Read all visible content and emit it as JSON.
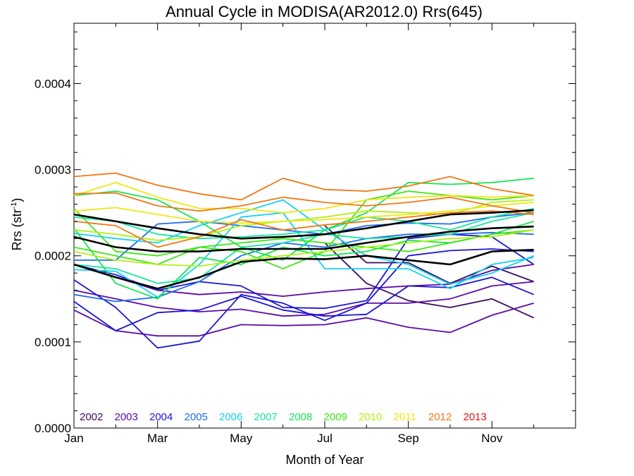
{
  "chart_data": {
    "type": "line",
    "title": "Annual Cycle in MODISA(AR2012.0) Rrs(645)",
    "xlabel": "Month of Year",
    "ylabel": "Rrs (str",
    "ylabel_sup": "-1",
    "ylabel_end": ")",
    "x_range": [
      1,
      13
    ],
    "ylim": [
      0,
      0.00047
    ],
    "x_ticks": [
      {
        "x": 1,
        "label": "Jan"
      },
      {
        "x": 3,
        "label": "Mar"
      },
      {
        "x": 5,
        "label": "May"
      },
      {
        "x": 7,
        "label": "Jul"
      },
      {
        "x": 9,
        "label": "Sep"
      },
      {
        "x": 11,
        "label": "Nov"
      }
    ],
    "y_ticks": [
      {
        "y": 0.0,
        "label": "0.0000"
      },
      {
        "y": 0.0001,
        "label": "0.0001"
      },
      {
        "y": 0.0002,
        "label": "0.0002"
      },
      {
        "y": 0.0003,
        "label": "0.0003"
      },
      {
        "y": 0.0004,
        "label": "0.0004"
      }
    ],
    "grid": false,
    "legend_position": "bottom-left",
    "series": [
      {
        "name": "2002",
        "color": "#3d0a5c",
        "x": [
          7,
          8,
          9,
          10,
          11,
          12
        ],
        "values": [
          0.000235,
          0.000192,
          0.000192,
          0.000168,
          0.000188,
          0.00017
        ]
      },
      {
        "name": "2002",
        "color": "#3d0a5c",
        "x": [
          7,
          8,
          9,
          10,
          11,
          12
        ],
        "values": [
          0.000215,
          0.000168,
          0.000148,
          0.00014,
          0.00015,
          0.000128
        ]
      },
      {
        "name": "2003",
        "color": "#5a0aa8",
        "x": [
          1,
          2,
          3,
          4,
          5,
          6,
          7,
          8,
          9,
          10,
          11,
          12
        ],
        "values": [
          0.00016,
          0.00015,
          0.00014,
          0.000135,
          0.000138,
          0.00013,
          0.000132,
          0.000145,
          0.000145,
          0.00015,
          0.000165,
          0.00017
        ]
      },
      {
        "name": "2003",
        "color": "#5a0aa8",
        "x": [
          1,
          2,
          3,
          4,
          5,
          6,
          7,
          8,
          9,
          10,
          11,
          12
        ],
        "values": [
          0.000137,
          0.000113,
          0.000107,
          0.000107,
          0.00012,
          0.000119,
          0.00012,
          0.000128,
          0.000117,
          0.000111,
          0.000131,
          0.000145
        ]
      },
      {
        "name": "2003",
        "color": "#5a0aa8",
        "x": [
          1,
          2,
          3,
          4,
          5,
          6,
          7,
          8,
          9,
          10,
          11,
          12
        ],
        "values": [
          0.00019,
          0.000175,
          0.00016,
          0.000155,
          0.000158,
          0.000153,
          0.000158,
          0.000162,
          0.000165,
          0.000167,
          0.000183,
          0.00019
        ]
      },
      {
        "name": "2004",
        "color": "#1a14d6",
        "x": [
          1,
          2,
          3,
          4,
          5,
          6,
          7,
          8,
          9,
          10,
          11,
          12
        ],
        "values": [
          0.000172,
          0.00014,
          9.3e-05,
          0.000101,
          0.000155,
          0.000145,
          0.000125,
          0.000145,
          0.0002,
          0.000206,
          0.000208,
          0.000205
        ]
      },
      {
        "name": "2004",
        "color": "#1a14d6",
        "x": [
          1,
          2,
          3,
          4,
          5,
          6,
          7,
          8,
          9,
          10,
          11,
          12
        ],
        "values": [
          0.000147,
          0.000113,
          0.000134,
          0.000137,
          0.000153,
          0.000137,
          0.00013,
          0.000132,
          0.000165,
          0.000163,
          0.000175,
          0.000155
        ]
      },
      {
        "name": "2004",
        "color": "#1a14d6",
        "x": [
          1,
          2,
          3,
          4,
          5,
          6,
          7,
          8,
          9,
          10,
          11,
          12
        ],
        "values": [
          0.00019,
          0.000178,
          0.00016,
          0.00017,
          0.000165,
          0.00014,
          0.000139,
          0.000148,
          0.00022,
          0.000225,
          0.000222,
          0.00019
        ]
      },
      {
        "name": "2005",
        "color": "#1f6cf0",
        "x": [
          1,
          2,
          3,
          4,
          5,
          6,
          7,
          8,
          9,
          10,
          11,
          12
        ],
        "values": [
          0.000155,
          0.000147,
          0.000152,
          0.00017,
          0.0002,
          0.000215,
          0.00021,
          0.00022,
          0.000225,
          0.000225,
          0.000227,
          0.000225
        ]
      },
      {
        "name": "2005",
        "color": "#1f6cf0",
        "x": [
          1,
          2,
          3,
          4,
          5,
          6,
          7,
          8,
          9,
          10,
          11,
          12
        ],
        "values": [
          0.000195,
          0.000195,
          0.000237,
          0.00024,
          0.000235,
          0.00023,
          0.000225,
          0.000235,
          0.000238,
          0.000237,
          0.000245,
          0.00025
        ]
      },
      {
        "name": "2006",
        "color": "#14d2f0",
        "x": [
          1,
          2,
          3,
          4,
          5,
          6,
          7,
          8,
          9,
          10,
          11,
          12
        ],
        "values": [
          0.000184,
          0.000182,
          0.000152,
          0.00019,
          0.000245,
          0.00025,
          0.000185,
          0.000185,
          0.000185,
          0.000162,
          0.00019,
          0.000198
        ]
      },
      {
        "name": "2006",
        "color": "#14d2f0",
        "x": [
          1,
          2,
          3,
          4,
          5,
          6,
          7,
          8,
          9,
          10,
          11,
          12
        ],
        "values": [
          0.000226,
          0.00022,
          0.000215,
          0.000235,
          0.00025,
          0.000265,
          0.00023,
          0.0002,
          0.00019,
          0.000167,
          0.00018,
          0.0002
        ]
      },
      {
        "name": "2007",
        "color": "#14e6a0",
        "x": [
          1,
          2,
          3,
          4,
          5,
          6,
          7,
          8,
          9,
          10,
          11,
          12
        ],
        "values": [
          0.00019,
          0.000185,
          0.000168,
          0.000174,
          0.00021,
          0.000215,
          0.000225,
          0.00022,
          0.000222,
          0.000225,
          0.00024,
          0.00025
        ]
      },
      {
        "name": "2007",
        "color": "#14e6a0",
        "x": [
          1,
          2,
          3,
          4,
          5,
          6,
          7,
          8,
          9,
          10,
          11,
          12
        ],
        "values": [
          0.000245,
          0.00024,
          0.000225,
          0.00022,
          0.000222,
          0.000225,
          0.00023,
          0.000245,
          0.00024,
          0.00023,
          0.000245,
          0.000255
        ]
      },
      {
        "name": "2008",
        "color": "#14e650",
        "x": [
          1,
          2,
          3,
          4,
          5,
          6,
          7,
          8,
          9,
          10,
          11,
          12
        ],
        "values": [
          0.00027,
          0.000275,
          0.000265,
          0.00024,
          0.00021,
          0.000195,
          0.00023,
          0.00025,
          0.000285,
          0.000283,
          0.000285,
          0.00029
        ]
      },
      {
        "name": "2008",
        "color": "#14e650",
        "x": [
          1,
          2,
          3,
          4,
          5,
          6,
          7,
          8,
          9,
          10,
          11,
          12
        ],
        "values": [
          0.000232,
          0.000168,
          0.00015,
          0.000198,
          0.00019,
          0.00021,
          0.0002,
          0.000205,
          0.000218,
          0.000215,
          0.000225,
          0.00024
        ]
      },
      {
        "name": "2009",
        "color": "#3ce614",
        "x": [
          1,
          2,
          3,
          4,
          5,
          6,
          7,
          8,
          9,
          10,
          11,
          12
        ],
        "values": [
          0.000255,
          0.000205,
          0.0002,
          0.00021,
          0.000205,
          0.000185,
          0.000205,
          0.000265,
          0.000275,
          0.00027,
          0.000265,
          0.00027
        ]
      },
      {
        "name": "2009",
        "color": "#3ce614",
        "x": [
          1,
          2,
          3,
          4,
          5,
          6,
          7,
          8,
          9,
          10,
          11,
          12
        ],
        "values": [
          0.00021,
          0.0002,
          0.00019,
          0.00021,
          0.000215,
          0.00022,
          0.000215,
          0.00021,
          0.000205,
          0.000215,
          0.000225,
          0.00023
        ]
      },
      {
        "name": "2010",
        "color": "#b4f014",
        "x": [
          1,
          2,
          3,
          4,
          5,
          6,
          7,
          8,
          9,
          10,
          11,
          12
        ],
        "values": [
          0.00023,
          0.000225,
          0.000218,
          0.000222,
          0.000235,
          0.00024,
          0.000245,
          0.000252,
          0.00025,
          0.000248,
          0.000262,
          0.000265
        ]
      },
      {
        "name": "2010",
        "color": "#b4f014",
        "x": [
          1,
          2,
          3,
          4,
          5,
          6,
          7,
          8,
          9,
          10,
          11,
          12
        ],
        "values": [
          0.000205,
          0.000195,
          0.00019,
          0.000188,
          0.000195,
          0.0002,
          0.000205,
          0.00021,
          0.000215,
          0.00022,
          0.000222,
          0.00023
        ]
      },
      {
        "name": "2011",
        "color": "#f0e614",
        "x": [
          1,
          2,
          3,
          4,
          5,
          6,
          7,
          8,
          9,
          10,
          11,
          12
        ],
        "values": [
          0.00027,
          0.000285,
          0.000268,
          0.000255,
          0.000255,
          0.00025,
          0.000255,
          0.000265,
          0.000268,
          0.00027,
          0.000268,
          0.00027
        ]
      },
      {
        "name": "2011",
        "color": "#f0e614",
        "x": [
          1,
          2,
          3,
          4,
          5,
          6,
          7,
          8,
          9,
          10,
          11,
          12
        ],
        "values": [
          0.000252,
          0.000256,
          0.000248,
          0.00024,
          0.000238,
          0.00024,
          0.000242,
          0.000245,
          0.000248,
          0.000252,
          0.000258,
          0.000262
        ]
      },
      {
        "name": "2012",
        "color": "#f07814",
        "x": [
          1,
          2,
          3,
          4,
          5,
          6,
          7,
          8,
          9,
          10,
          11,
          12
        ],
        "values": [
          0.000292,
          0.000296,
          0.000282,
          0.000272,
          0.000265,
          0.00029,
          0.000277,
          0.000275,
          0.000281,
          0.000292,
          0.000278,
          0.00027
        ]
      },
      {
        "name": "2012",
        "color": "#f07814",
        "x": [
          1,
          2,
          3,
          4,
          5,
          6,
          7,
          8,
          9,
          10,
          11,
          12
        ],
        "values": [
          0.000272,
          0.000273,
          0.000258,
          0.000252,
          0.000258,
          0.000268,
          0.000262,
          0.000258,
          0.000262,
          0.000268,
          0.000258,
          0.00025
        ]
      },
      {
        "name": "2012",
        "color": "#f07814",
        "x": [
          1,
          2,
          3,
          4,
          5,
          6,
          7,
          8,
          9,
          10,
          11,
          12
        ],
        "values": [
          0.00024,
          0.000235,
          0.00021,
          0.000222,
          0.000242,
          0.00023,
          0.000236,
          0.00024,
          0.000245,
          0.00025,
          0.000252,
          0.000248
        ]
      },
      {
        "name": "2013",
        "color": "#e61414",
        "x": [],
        "values": []
      },
      {
        "name": "",
        "color": "#000000",
        "x": [
          1,
          2,
          3,
          4,
          5,
          6,
          7,
          8,
          9,
          10,
          11,
          12
        ],
        "values": [
          0.000248,
          0.00024,
          0.000232,
          0.000225,
          0.00022,
          0.000222,
          0.000225,
          0.000232,
          0.00024,
          0.000248,
          0.00025,
          0.000253
        ]
      },
      {
        "name": "",
        "color": "#000000",
        "x": [
          1,
          2,
          3,
          4,
          5,
          6,
          7,
          8,
          9,
          10,
          11,
          12
        ],
        "values": [
          0.000222,
          0.00021,
          0.000205,
          0.000205,
          0.000208,
          0.000208,
          0.000208,
          0.000215,
          0.000222,
          0.000228,
          0.000232,
          0.000234
        ]
      },
      {
        "name": "",
        "color": "#000000",
        "x": [
          1,
          2,
          3,
          4,
          5,
          6,
          7,
          8,
          9,
          10,
          11,
          12
        ],
        "values": [
          0.00019,
          0.000175,
          0.000162,
          0.000175,
          0.000193,
          0.000197,
          0.000196,
          0.0002,
          0.000195,
          0.00019,
          0.000205,
          0.000207
        ]
      }
    ],
    "legend": [
      {
        "label": "2002",
        "color": "#3d0a5c"
      },
      {
        "label": "2003",
        "color": "#5a0aa8"
      },
      {
        "label": "2004",
        "color": "#1a14d6"
      },
      {
        "label": "2005",
        "color": "#1f6cf0"
      },
      {
        "label": "2006",
        "color": "#14d2f0"
      },
      {
        "label": "2007",
        "color": "#14e6a0"
      },
      {
        "label": "2008",
        "color": "#14e650"
      },
      {
        "label": "2009",
        "color": "#3ce614"
      },
      {
        "label": "2010",
        "color": "#b4f014"
      },
      {
        "label": "2011",
        "color": "#f0e614"
      },
      {
        "label": "2012",
        "color": "#f07814"
      },
      {
        "label": "2013",
        "color": "#e61414"
      }
    ]
  }
}
